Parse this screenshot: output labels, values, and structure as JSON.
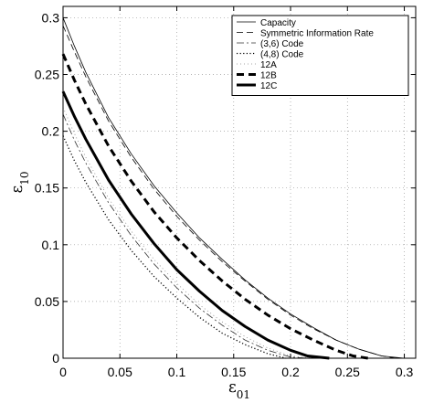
{
  "chart_data": {
    "type": "line",
    "title": "",
    "xlabel": {
      "main": "ε",
      "sub": "01"
    },
    "ylabel": {
      "main": "ε",
      "sub": "10"
    },
    "xlim": [
      0,
      0.31
    ],
    "ylim": [
      0,
      0.31
    ],
    "xticks": [
      "0",
      "0.05",
      "0.1",
      "0.15",
      "0.2",
      "0.25",
      "0.3"
    ],
    "yticks": [
      "0",
      "0.05",
      "0.1",
      "0.15",
      "0.2",
      "0.25",
      "0.3"
    ],
    "grid": true,
    "legend_position": "top-right",
    "series": [
      {
        "name": "Capacity",
        "style": "thin-solid",
        "x": [
          0,
          0.01,
          0.02,
          0.04,
          0.06,
          0.08,
          0.1,
          0.12,
          0.14,
          0.16,
          0.18,
          0.2,
          0.22,
          0.24,
          0.26,
          0.28,
          0.3
        ],
        "y": [
          0.3,
          0.275,
          0.252,
          0.212,
          0.18,
          0.152,
          0.128,
          0.106,
          0.087,
          0.069,
          0.053,
          0.039,
          0.027,
          0.016,
          0.008,
          0.002,
          0.0
        ]
      },
      {
        "name": "Symmetric Information Rate",
        "style": "thin-dashed",
        "x": [
          0,
          0.01,
          0.02,
          0.04,
          0.06,
          0.08,
          0.1,
          0.12,
          0.14,
          0.16,
          0.18,
          0.2,
          0.22,
          0.24,
          0.26,
          0.28,
          0.293
        ],
        "y": [
          0.293,
          0.27,
          0.248,
          0.209,
          0.177,
          0.149,
          0.125,
          0.104,
          0.085,
          0.068,
          0.052,
          0.038,
          0.026,
          0.016,
          0.008,
          0.002,
          0.0
        ]
      },
      {
        "name": "(3,6) Code",
        "style": "dashdot",
        "x": [
          0,
          0.01,
          0.02,
          0.04,
          0.06,
          0.08,
          0.1,
          0.12,
          0.14,
          0.16,
          0.18,
          0.2,
          0.215
        ],
        "y": [
          0.215,
          0.192,
          0.172,
          0.137,
          0.108,
          0.083,
          0.062,
          0.044,
          0.029,
          0.016,
          0.007,
          0.001,
          0.0
        ]
      },
      {
        "name": "(4,8) Code",
        "style": "dotted",
        "x": [
          0,
          0.01,
          0.02,
          0.04,
          0.06,
          0.08,
          0.1,
          0.12,
          0.14,
          0.16,
          0.18,
          0.196
        ],
        "y": [
          0.196,
          0.174,
          0.155,
          0.122,
          0.095,
          0.072,
          0.053,
          0.036,
          0.022,
          0.012,
          0.004,
          0.0
        ]
      },
      {
        "name": "12A",
        "style": "faint-dotted",
        "x": [
          0,
          0.01,
          0.02,
          0.04,
          0.06,
          0.08,
          0.1,
          0.12,
          0.14,
          0.16,
          0.18,
          0.2,
          0.22
        ],
        "y": [
          0.221,
          0.198,
          0.177,
          0.141,
          0.112,
          0.087,
          0.066,
          0.047,
          0.032,
          0.019,
          0.009,
          0.002,
          0.0
        ]
      },
      {
        "name": "12B",
        "style": "thick-dashed",
        "x": [
          0,
          0.01,
          0.02,
          0.04,
          0.06,
          0.08,
          0.1,
          0.12,
          0.14,
          0.16,
          0.18,
          0.2,
          0.22,
          0.24,
          0.255,
          0.268
        ],
        "y": [
          0.268,
          0.245,
          0.224,
          0.187,
          0.156,
          0.129,
          0.106,
          0.086,
          0.068,
          0.052,
          0.038,
          0.026,
          0.016,
          0.007,
          0.002,
          0.0
        ]
      },
      {
        "name": "12C",
        "style": "thick-solid",
        "x": [
          0,
          0.01,
          0.02,
          0.04,
          0.06,
          0.08,
          0.1,
          0.12,
          0.14,
          0.16,
          0.18,
          0.2,
          0.215,
          0.234
        ],
        "y": [
          0.235,
          0.213,
          0.193,
          0.157,
          0.127,
          0.101,
          0.078,
          0.059,
          0.042,
          0.028,
          0.016,
          0.007,
          0.002,
          0.0
        ]
      }
    ]
  }
}
